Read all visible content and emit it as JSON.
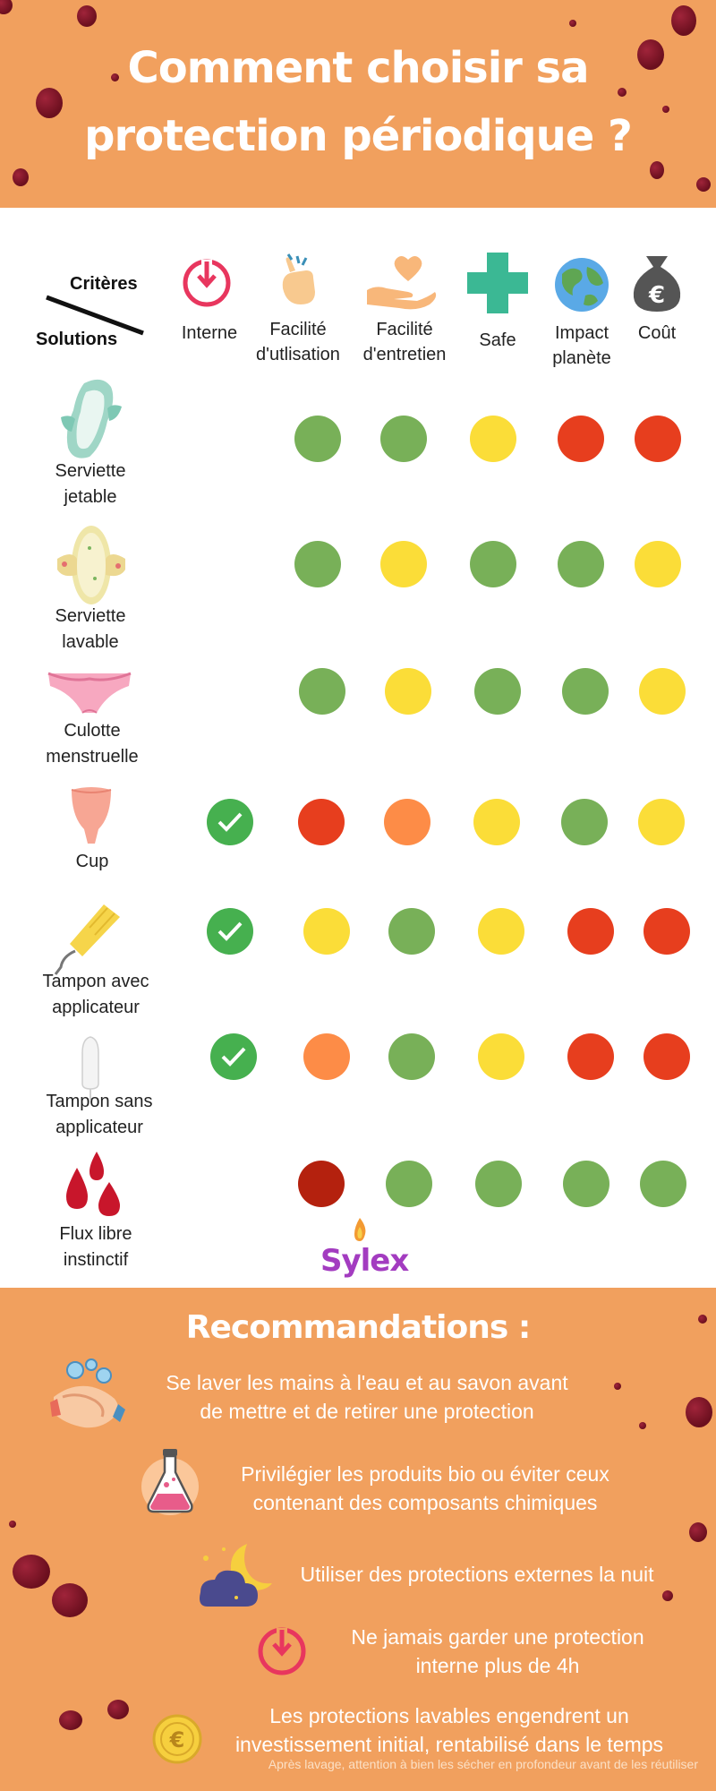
{
  "header": {
    "title_line1": "Comment choisir sa",
    "title_line2": "protection périodique ?"
  },
  "table": {
    "criteria_label": "Critères",
    "solutions_label": "Solutions",
    "criteria": [
      {
        "label": "Interne",
        "icon": "power-icon"
      },
      {
        "label": "Facilité\nd'utlisation",
        "icon": "hand-snap-icon"
      },
      {
        "label": "Facilité\nd'entretien",
        "icon": "heart-hand-icon"
      },
      {
        "label": "Safe",
        "icon": "medical-cross-icon"
      },
      {
        "label": "Impact\nplanète",
        "icon": "earth-icon"
      },
      {
        "label": "Coût",
        "icon": "euro-bag-icon"
      }
    ],
    "solutions": [
      {
        "label": "Serviette\njetable",
        "icon": "pad-icon",
        "ratings": [
          "",
          "green",
          "green",
          "yellow",
          "red",
          "red"
        ]
      },
      {
        "label": "Serviette\nlavable",
        "icon": "cloth-pad-icon",
        "ratings": [
          "",
          "green",
          "yellow",
          "green",
          "green",
          "yellow"
        ]
      },
      {
        "label": "Culotte\nmenstruelle",
        "icon": "panty-icon",
        "ratings": [
          "",
          "green",
          "yellow",
          "green",
          "green",
          "yellow"
        ]
      },
      {
        "label": "Cup",
        "icon": "cup-icon",
        "ratings": [
          "check",
          "red",
          "orange",
          "yellow",
          "green",
          "yellow"
        ]
      },
      {
        "label": "Tampon avec\napplicateur",
        "icon": "tampon-applicator-icon",
        "ratings": [
          "check",
          "yellow",
          "green",
          "yellow",
          "red",
          "red"
        ]
      },
      {
        "label": "Tampon sans\napplicateur",
        "icon": "tampon-icon",
        "ratings": [
          "check",
          "orange",
          "green",
          "yellow",
          "red",
          "red"
        ]
      },
      {
        "label": "Flux libre\ninstinctif",
        "icon": "blood-drops-icon",
        "ratings": [
          "",
          "darkred",
          "green",
          "green",
          "green",
          "green"
        ]
      }
    ]
  },
  "logo": "Sylex",
  "colors": {
    "orange_bg": "#f1a05e",
    "green": "#78b058",
    "yellow": "#fbdd38",
    "red": "#e73e1e",
    "orange": "#fd8c47",
    "darkred": "#b4210e",
    "check_green": "#46b04f"
  },
  "recommendations": {
    "title": "Recommandations :",
    "items": [
      {
        "text": "Se laver les mains à l'eau et au savon avant\nde mettre et de retirer une protection",
        "icon": "hand-washing-icon"
      },
      {
        "text": "Privilégier les produits bio ou éviter ceux\ncontenant des composants chimiques",
        "icon": "flask-icon"
      },
      {
        "text": "Utiliser des protections externes la nuit",
        "icon": "moon-cloud-icon"
      },
      {
        "text": "Ne jamais garder une protection\ninterne plus de 4h",
        "icon": "power-icon"
      },
      {
        "text": "Les protections lavables engendrent un\ninvestissement initial, rentabilisé dans le temps",
        "icon": "euro-coin-icon"
      }
    ],
    "note": "Après lavage, attention à bien les sécher en profondeur avant de les réutiliser"
  }
}
